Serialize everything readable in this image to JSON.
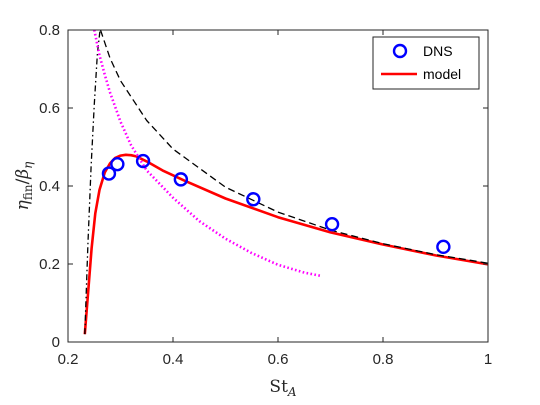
{
  "chart_data": {
    "type": "line",
    "xlabel": "St",
    "xlabel_sub": "A",
    "ylabel_main": "η",
    "ylabel_main_sub": "fin",
    "ylabel_sep": "/",
    "ylabel_den": "β",
    "ylabel_den_sub": "η",
    "xlim": [
      0.2,
      1.0
    ],
    "ylim": [
      0,
      0.8
    ],
    "xticks": [
      0.2,
      0.4,
      0.6,
      0.8,
      1.0
    ],
    "xtick_labels": [
      "0.2",
      "0.4",
      "0.6",
      "0.8",
      "1"
    ],
    "yticks": [
      0,
      0.2,
      0.4,
      0.6,
      0.8
    ],
    "ytick_labels": [
      "0",
      "0.2",
      "0.4",
      "0.6",
      "0.8"
    ],
    "grid": false,
    "legend_position": "top-right",
    "series": [
      {
        "name": "DNS",
        "style": "markers",
        "marker": "circle",
        "color": "#0000ff",
        "x": [
          0.278,
          0.294,
          0.343,
          0.415,
          0.553,
          0.703,
          0.915
        ],
        "y": [
          0.432,
          0.456,
          0.464,
          0.417,
          0.366,
          0.302,
          0.244
        ]
      },
      {
        "name": "model",
        "style": "solid",
        "color": "#ff0000",
        "x": [
          0.232,
          0.238,
          0.245,
          0.252,
          0.26,
          0.27,
          0.28,
          0.29,
          0.3,
          0.31,
          0.32,
          0.33,
          0.35,
          0.38,
          0.42,
          0.5,
          0.6,
          0.7,
          0.8,
          0.9,
          1.0
        ],
        "y": [
          0.02,
          0.12,
          0.24,
          0.33,
          0.39,
          0.435,
          0.458,
          0.472,
          0.478,
          0.48,
          0.479,
          0.476,
          0.463,
          0.44,
          0.415,
          0.368,
          0.32,
          0.281,
          0.25,
          0.222,
          0.199
        ]
      },
      {
        "style": "dashed",
        "color": "#000000",
        "x": [
          0.262,
          0.28,
          0.3,
          0.35,
          0.4,
          0.5,
          0.6,
          0.7,
          0.8,
          0.9,
          1.0
        ],
        "y": [
          0.8,
          0.728,
          0.67,
          0.568,
          0.495,
          0.397,
          0.333,
          0.287,
          0.252,
          0.224,
          0.202
        ]
      },
      {
        "style": "dashdot",
        "color": "#000000",
        "x": [
          0.232,
          0.238,
          0.244,
          0.25,
          0.256,
          0.262
        ],
        "y": [
          0.02,
          0.25,
          0.45,
          0.61,
          0.74,
          0.81
        ]
      },
      {
        "style": "dotted",
        "color": "#ff00ff",
        "x": [
          0.25,
          0.26,
          0.27,
          0.28,
          0.3,
          0.32,
          0.35,
          0.4,
          0.45,
          0.5,
          0.55,
          0.6,
          0.65,
          0.68
        ],
        "y": [
          0.8,
          0.735,
          0.685,
          0.64,
          0.565,
          0.505,
          0.44,
          0.37,
          0.31,
          0.265,
          0.228,
          0.198,
          0.178,
          0.17
        ]
      }
    ]
  }
}
